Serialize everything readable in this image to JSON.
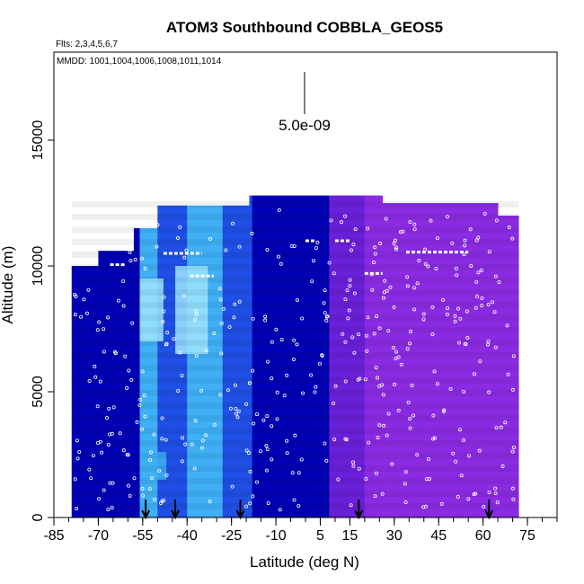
{
  "chart_data": {
    "type": "heatmap",
    "title": "ATOM3 Southbound COBBLA_GEOS5",
    "subtitle_flights": "Flts: 2,3,4,5,6,7",
    "subtitle_dates": "MMDD: 1001,1004,1006,1008,1011,1014",
    "xlabel": "Latitude (deg N)",
    "ylabel": "Altitude (m)",
    "xlim": [
      -85,
      85
    ],
    "ylim": [
      0,
      18500
    ],
    "x_ticks": [
      -85,
      -70,
      -55,
      -40,
      -25,
      -10,
      5,
      15,
      30,
      45,
      60,
      75
    ],
    "y_ticks": [
      0,
      5000,
      10000,
      15000
    ],
    "scale_bar_label": "5.0e-09",
    "grid": false,
    "colors": {
      "dark_blue": "#0000b4",
      "mid_blue": "#1f4fe6",
      "light_blue": "#3fb0f5",
      "sky": "#9fe6ff",
      "purple": "#8a2be2",
      "violet": "#6a1fd8"
    },
    "curtain_extent": {
      "lat_start": -79,
      "lat_end": 72,
      "top_profile": [
        [
          -79,
          10000
        ],
        [
          -70,
          10600
        ],
        [
          -60,
          11500
        ],
        [
          -50,
          12400
        ],
        [
          -35,
          12400
        ],
        [
          -20,
          12800
        ],
        [
          20,
          12800
        ],
        [
          25,
          12500
        ],
        [
          60,
          12500
        ],
        [
          65,
          12000
        ],
        [
          72,
          12000
        ]
      ]
    },
    "color_bands": [
      {
        "lat_from": -79,
        "lat_to": -56,
        "color": "dark_blue"
      },
      {
        "lat_from": -56,
        "lat_to": -50,
        "color": "light_blue"
      },
      {
        "lat_from": -50,
        "lat_to": -40,
        "color": "mid_blue"
      },
      {
        "lat_from": -40,
        "lat_to": -28,
        "color": "light_blue"
      },
      {
        "lat_from": -28,
        "lat_to": -18,
        "color": "mid_blue"
      },
      {
        "lat_from": -18,
        "lat_to": 8,
        "color": "dark_blue"
      },
      {
        "lat_from": 8,
        "lat_to": 20,
        "color": "violet"
      },
      {
        "lat_from": 20,
        "lat_to": 72,
        "color": "purple"
      }
    ],
    "highlights": [
      {
        "lat_from": -44,
        "lat_to": -33,
        "alt_from": 6500,
        "alt_to": 10000,
        "color": "sky"
      },
      {
        "lat_from": -56,
        "lat_to": -48,
        "alt_from": 7000,
        "alt_to": 9500,
        "color": "sky"
      },
      {
        "lat_from": -53,
        "lat_to": -47,
        "alt_from": 1500,
        "alt_to": 2600,
        "color": "light_blue"
      }
    ],
    "profile_markers_lat": [
      -54,
      -44,
      -22,
      18,
      62
    ],
    "flight_level_segments": [
      {
        "lat_from": -54,
        "lat_to": -50,
        "alt": 12150
      },
      {
        "lat_from": -48,
        "lat_to": -35,
        "alt": 10500
      },
      {
        "lat_from": -39,
        "lat_to": -31,
        "alt": 9600
      },
      {
        "lat_from": -66,
        "lat_to": -61,
        "alt": 10050
      },
      {
        "lat_from": 0,
        "lat_to": 3,
        "alt": 11000
      },
      {
        "lat_from": 10,
        "lat_to": 15,
        "alt": 11000
      },
      {
        "lat_from": 20,
        "lat_to": 26,
        "alt": 9700
      },
      {
        "lat_from": 34,
        "lat_to": 55,
        "alt": 10550
      },
      {
        "lat_from": 68,
        "lat_to": 71,
        "alt": 12100
      }
    ]
  }
}
